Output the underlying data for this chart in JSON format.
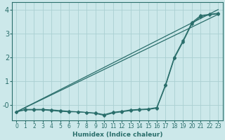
{
  "xlabel": "Humidex (Indice chaleur)",
  "xlim": [
    -0.5,
    23.5
  ],
  "ylim": [
    -0.65,
    4.3
  ],
  "bg_color": "#cce8ea",
  "grid_color": "#aacfd2",
  "line_color": "#2a6e6b",
  "straight_line1": {
    "x": [
      0,
      23
    ],
    "y": [
      -0.3,
      3.8
    ]
  },
  "straight_line2": {
    "x": [
      0,
      23
    ],
    "y": [
      -0.3,
      4.0
    ]
  },
  "curve1_x": [
    0,
    1,
    2,
    3,
    4,
    5,
    6,
    7,
    8,
    9,
    10,
    11,
    12,
    13,
    14,
    15,
    16,
    17,
    18,
    19,
    20,
    21,
    22,
    23
  ],
  "curve1_y": [
    -0.3,
    -0.22,
    -0.22,
    -0.22,
    -0.25,
    -0.28,
    -0.3,
    -0.3,
    -0.33,
    -0.37,
    -0.45,
    -0.35,
    -0.3,
    -0.25,
    -0.22,
    -0.2,
    -0.15,
    0.8,
    1.95,
    2.65,
    3.4,
    3.7,
    3.78,
    3.82
  ],
  "curve2_x": [
    0,
    1,
    2,
    3,
    4,
    5,
    6,
    7,
    8,
    9,
    10,
    11,
    12,
    13,
    14,
    15,
    16,
    17,
    18,
    19,
    20,
    21,
    22,
    23
  ],
  "curve2_y": [
    -0.3,
    -0.2,
    -0.2,
    -0.2,
    -0.22,
    -0.25,
    -0.28,
    -0.3,
    -0.33,
    -0.35,
    -0.42,
    -0.32,
    -0.28,
    -0.22,
    -0.2,
    -0.18,
    -0.12,
    0.85,
    2.0,
    2.7,
    3.45,
    3.75,
    3.8,
    3.85
  ],
  "xticks": [
    0,
    1,
    2,
    3,
    4,
    5,
    6,
    7,
    8,
    9,
    10,
    11,
    12,
    13,
    14,
    15,
    16,
    17,
    18,
    19,
    20,
    21,
    22,
    23
  ],
  "yticks": [
    0,
    1,
    2,
    3,
    4
  ],
  "ytick_labels": [
    "-0",
    "1",
    "2",
    "3",
    "4"
  ],
  "marker_size": 2.5,
  "line_width": 0.9,
  "xlabel_fontsize": 6.5,
  "tick_fontsize": 5.5,
  "ytick_fontsize": 7
}
